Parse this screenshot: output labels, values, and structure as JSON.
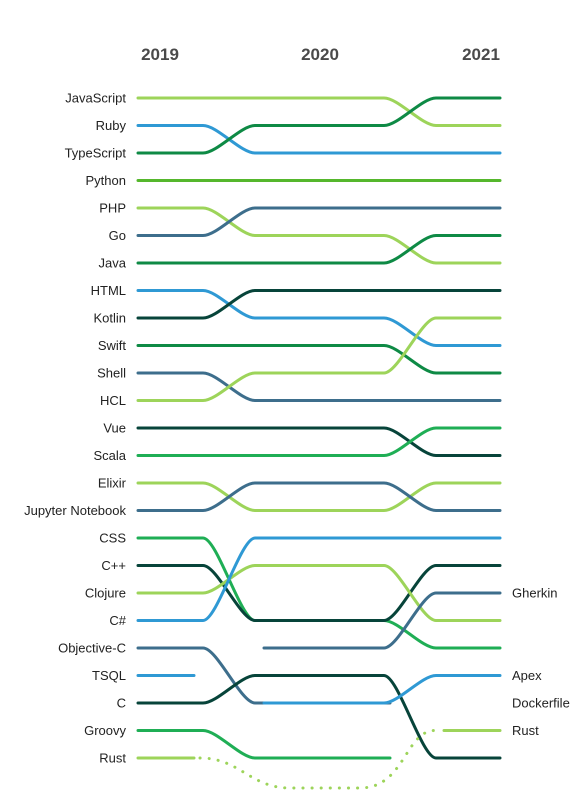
{
  "chart_data": {
    "type": "bump",
    "title": "",
    "x": [
      "2019",
      "2020",
      "2021"
    ],
    "y_axis": "rank",
    "rank_range": [
      1,
      25
    ],
    "grid": false,
    "legend": "none",
    "languages": [
      {
        "name": "JavaScript",
        "ranks": [
          1,
          1,
          2
        ],
        "color": "#9dd45a"
      },
      {
        "name": "Ruby",
        "ranks": [
          2,
          3,
          3
        ],
        "color": "#2f99d4"
      },
      {
        "name": "TypeScript",
        "ranks": [
          3,
          2,
          1
        ],
        "color": "#0e8a45"
      },
      {
        "name": "Python",
        "ranks": [
          4,
          4,
          4
        ],
        "color": "#55b72c"
      },
      {
        "name": "PHP",
        "ranks": [
          5,
          6,
          7
        ],
        "color": "#9dd45a"
      },
      {
        "name": "Go",
        "ranks": [
          6,
          5,
          5
        ],
        "color": "#3d6e8c"
      },
      {
        "name": "Java",
        "ranks": [
          7,
          7,
          6
        ],
        "color": "#0e8a45"
      },
      {
        "name": "HTML",
        "ranks": [
          8,
          9,
          10
        ],
        "color": "#2f99d4"
      },
      {
        "name": "Kotlin",
        "ranks": [
          9,
          8,
          8
        ],
        "color": "#07443a"
      },
      {
        "name": "Swift",
        "ranks": [
          10,
          10,
          11
        ],
        "color": "#0e8a45"
      },
      {
        "name": "Shell",
        "ranks": [
          11,
          12,
          12
        ],
        "color": "#3d6e8c"
      },
      {
        "name": "HCL",
        "ranks": [
          12,
          11,
          9
        ],
        "color": "#9dd45a"
      },
      {
        "name": "Vue",
        "ranks": [
          13,
          13,
          14
        ],
        "color": "#07443a"
      },
      {
        "name": "Scala",
        "ranks": [
          14,
          14,
          13
        ],
        "color": "#1fae55"
      },
      {
        "name": "Elixir",
        "ranks": [
          15,
          16,
          15
        ],
        "color": "#9dd45a"
      },
      {
        "name": "Jupyter Notebook",
        "ranks": [
          16,
          15,
          16
        ],
        "color": "#3d6e8c"
      },
      {
        "name": "CSS",
        "ranks": [
          17,
          20,
          21
        ],
        "color": "#1fae55"
      },
      {
        "name": "C++",
        "ranks": [
          18,
          20,
          18
        ],
        "color": "#07443a"
      },
      {
        "name": "Clojure",
        "ranks": [
          19,
          18,
          20
        ],
        "color": "#9dd45a"
      },
      {
        "name": "C#",
        "ranks": [
          20,
          17,
          17
        ],
        "color": "#2f99d4"
      },
      {
        "name": "Objective-C",
        "ranks": [
          21,
          23,
          null
        ],
        "color": "#3d6e8c"
      },
      {
        "name": "TSQL",
        "ranks": [
          22,
          null,
          null
        ],
        "color": "#2f99d4"
      },
      {
        "name": "C",
        "ranks": [
          23,
          22,
          25
        ],
        "color": "#07443a"
      },
      {
        "name": "Groovy",
        "ranks": [
          24,
          25,
          null
        ],
        "color": "#1fae55"
      },
      {
        "name": "Rust",
        "ranks": [
          25,
          null,
          24
        ],
        "color": "#9dd45a",
        "dashed_gap": true
      },
      {
        "name": "Gherkin",
        "ranks": [
          null,
          21,
          19
        ],
        "color": "#3d6e8c"
      },
      {
        "name": "Apex",
        "ranks": [
          null,
          23,
          22
        ],
        "color": "#2f99d4"
      },
      {
        "name": "Dockerfile",
        "ranks": [
          null,
          null,
          23
        ],
        "color": "#0e8a45"
      }
    ],
    "right_labels": [
      {
        "name": "Gherkin",
        "rank": 19
      },
      {
        "name": "Apex",
        "rank": 22
      },
      {
        "name": "Dockerfile",
        "rank": 23
      },
      {
        "name": "Rust",
        "rank": 24
      }
    ]
  }
}
